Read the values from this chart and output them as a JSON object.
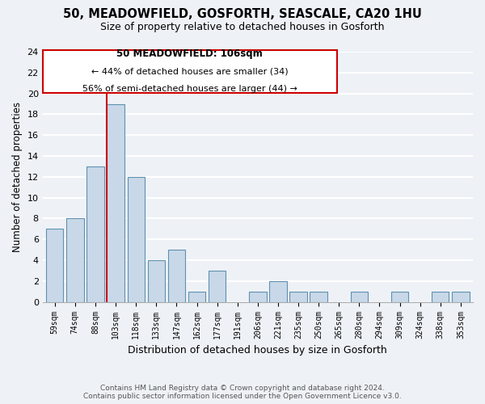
{
  "title": "50, MEADOWFIELD, GOSFORTH, SEASCALE, CA20 1HU",
  "subtitle": "Size of property relative to detached houses in Gosforth",
  "xlabel": "Distribution of detached houses by size in Gosforth",
  "ylabel": "Number of detached properties",
  "bar_color": "#c8d8e8",
  "bar_edge_color": "#6090b0",
  "bins": [
    "59sqm",
    "74sqm",
    "88sqm",
    "103sqm",
    "118sqm",
    "133sqm",
    "147sqm",
    "162sqm",
    "177sqm",
    "191sqm",
    "206sqm",
    "221sqm",
    "235sqm",
    "250sqm",
    "265sqm",
    "280sqm",
    "294sqm",
    "309sqm",
    "324sqm",
    "338sqm",
    "353sqm"
  ],
  "values": [
    7,
    8,
    13,
    19,
    12,
    4,
    5,
    1,
    3,
    0,
    1,
    2,
    1,
    1,
    0,
    1,
    0,
    1,
    0,
    1,
    1
  ],
  "ylim": [
    0,
    24
  ],
  "yticks": [
    0,
    2,
    4,
    6,
    8,
    10,
    12,
    14,
    16,
    18,
    20,
    22,
    24
  ],
  "property_line_bin_index": 3,
  "annotation_title": "50 MEADOWFIELD: 106sqm",
  "annotation_line1": "← 44% of detached houses are smaller (34)",
  "annotation_line2": "56% of semi-detached houses are larger (44) →",
  "footnote1": "Contains HM Land Registry data © Crown copyright and database right 2024.",
  "footnote2": "Contains public sector information licensed under the Open Government Licence v3.0.",
  "background_color": "#eef2f7",
  "grid_color": "#ffffff",
  "annotation_box_color": "#ffffff",
  "annotation_box_edge": "#cc0000",
  "property_line_color": "#cc0000"
}
